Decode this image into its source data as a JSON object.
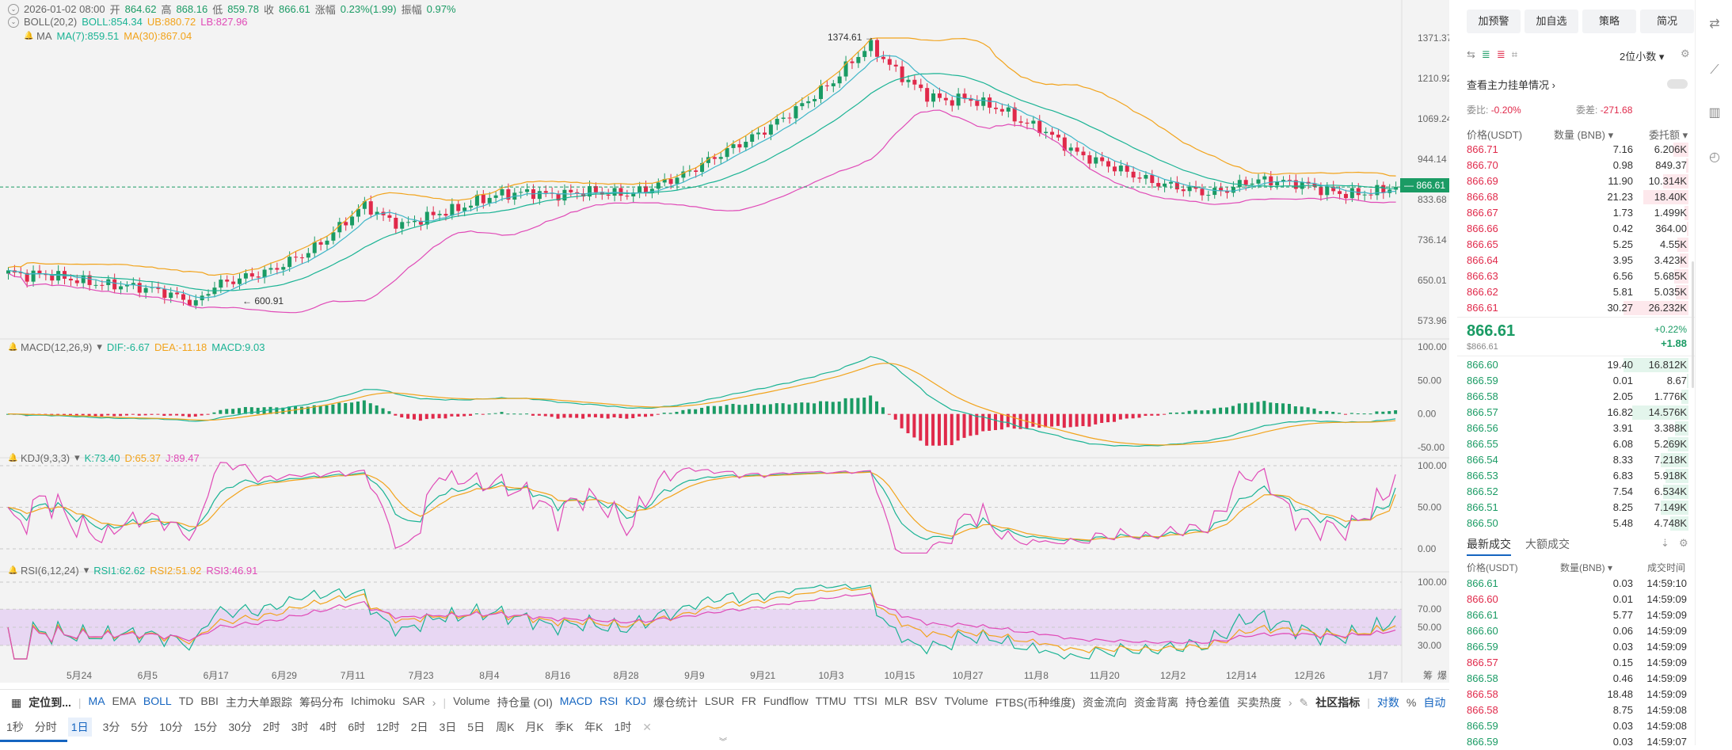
{
  "ohlc_line": {
    "date": "2026-01-02 08:00",
    "open_label": "开",
    "open": "864.62",
    "high_label": "高",
    "high": "868.16",
    "low_label": "低",
    "low": "859.78",
    "close_label": "收",
    "close": "866.61",
    "chg_label": "涨幅",
    "chg": "0.23%(1.99)",
    "amp_label": "振幅",
    "amp": "0.97%"
  },
  "boll_line": {
    "name": "BOLL(20,2)",
    "boll": "BOLL:854.34",
    "ub": "UB:880.72",
    "lb": "LB:827.96"
  },
  "ma_line": {
    "name": "MA",
    "ma7": "MA(7):859.51",
    "ma30": "MA(30):867.04"
  },
  "macd_line": {
    "name": "MACD(12,26,9)",
    "dif": "DIF:-6.67",
    "dea": "DEA:-11.18",
    "macd": "MACD:9.03"
  },
  "kdj_line": {
    "name": "KDJ(9,3,3)",
    "k": "K:73.40",
    "d": "D:65.37",
    "j": "J:89.47"
  },
  "rsi_line": {
    "name": "RSI(6,12,24)",
    "r1": "RSI1:62.62",
    "r2": "RSI2:51.92",
    "r3": "RSI3:46.91"
  },
  "price_axis": [
    "1371.37",
    "1210.92",
    "1069.24",
    "944.14",
    "833.68",
    "736.14",
    "650.01",
    "573.96"
  ],
  "current_price_tag": "866.61",
  "high_marker": "1374.61",
  "low_marker": "600.91",
  "macd_axis": [
    "100.00",
    "50.00",
    "0.00",
    "-50.00"
  ],
  "kdj_axis": [
    "100.00",
    "50.00",
    "0.00"
  ],
  "rsi_axis": [
    "100.00",
    "70.00",
    "50.00",
    "30.00"
  ],
  "date_axis": [
    "5月24",
    "6月5",
    "6月17",
    "6月29",
    "7月11",
    "7月23",
    "8月4",
    "8月16",
    "8月28",
    "9月9",
    "9月21",
    "10月3",
    "10月15",
    "10月27",
    "11月8",
    "11月20",
    "12月2",
    "12月14",
    "12月26",
    "1月7"
  ],
  "axis_corner": [
    "筹",
    "爆"
  ],
  "chart_data": {
    "type": "candlestick",
    "title": "",
    "timeframe": "1日",
    "high": 1374.61,
    "low": 600.91,
    "last": 866.61,
    "ylim": [
      573.96,
      1371.37
    ],
    "x_ticks": [
      "5月24",
      "6月5",
      "6月17",
      "6月29",
      "7月11",
      "7月23",
      "8月4",
      "8月16",
      "8月28",
      "9月9",
      "9月21",
      "10月3",
      "10月15",
      "10月27",
      "11月8",
      "11月20",
      "12月2",
      "12月14",
      "12月26",
      "1月7"
    ],
    "y_ticks": [
      1371.37,
      1210.92,
      1069.24,
      944.14,
      833.68,
      736.14,
      650.01,
      573.96
    ],
    "series": [
      {
        "name": "BOLL",
        "last": 854.34
      },
      {
        "name": "UB",
        "last": 880.72
      },
      {
        "name": "LB",
        "last": 827.96
      },
      {
        "name": "MA(7)",
        "last": 859.51
      },
      {
        "name": "MA(30)",
        "last": 867.04
      }
    ],
    "close_trend": [
      665,
      660,
      662,
      655,
      648,
      642,
      640,
      636,
      630,
      618,
      605,
      640,
      650,
      660,
      670,
      690,
      710,
      740,
      780,
      820,
      790,
      770,
      785,
      800,
      810,
      830,
      845,
      850,
      852,
      845,
      850,
      855,
      850,
      848,
      860,
      880,
      900,
      930,
      960,
      990,
      1020,
      1060,
      1100,
      1150,
      1200,
      1280,
      1340,
      1260,
      1200,
      1150,
      1130,
      1140,
      1120,
      1100,
      1060,
      1040,
      1000,
      960,
      940,
      920,
      900,
      880,
      870,
      860,
      850,
      860,
      880,
      885,
      880,
      875,
      860,
      850,
      848,
      855,
      866.61
    ],
    "indicators": {
      "macd": {
        "ylim": [
          -50,
          100
        ],
        "ticks": [
          100,
          50,
          0,
          -50
        ],
        "dif": -6.67,
        "dea": -11.18,
        "macd": 9.03
      },
      "kdj": {
        "ylim": [
          0,
          100
        ],
        "ticks": [
          100,
          50,
          0
        ],
        "k": 73.4,
        "d": 65.37,
        "j": 89.47
      },
      "rsi": {
        "ylim": [
          30,
          100
        ],
        "ticks": [
          100,
          70,
          50,
          30
        ],
        "band": [
          30,
          70
        ],
        "rsi1": 62.62,
        "rsi2": 51.92,
        "rsi3": 46.91
      }
    }
  },
  "indicator_bar": {
    "locate": "定位到...",
    "main": [
      "MA",
      "EMA",
      "BOLL",
      "TD",
      "BBI",
      "主力大单跟踪",
      "筹码分布",
      "Ichimoku",
      "SAR"
    ],
    "sub": [
      "Volume",
      "持仓量 (OI)",
      "MACD",
      "RSI",
      "KDJ",
      "爆仓统计",
      "LSUR",
      "FR",
      "Fundflow",
      "TTMU",
      "TTSI",
      "MLR",
      "BSV",
      "TVolume",
      "FTBS(币种维度)",
      "资金流向",
      "资金背离",
      "持仓差值",
      "买卖热度"
    ],
    "community": "社区指标",
    "log": "对数",
    "pct": "%",
    "auto": "自动"
  },
  "timeframes": [
    "1秒",
    "分时",
    "1日",
    "1日",
    "3分",
    "5分",
    "10分",
    "15分",
    "30分",
    "2时",
    "3时",
    "4时",
    "6时",
    "12时",
    "2日",
    "3日",
    "5日",
    "周K",
    "月K",
    "季K",
    "年K",
    "1时"
  ],
  "active_timeframe": "1日",
  "right_panel": {
    "buttons": [
      "加预警",
      "加自选",
      "策略",
      "简况"
    ],
    "decimals": "2位小数",
    "main_orders": "查看主力挂单情况",
    "weibi_label": "委比:",
    "weibi": "-0.20%",
    "weicha_label": "委差:",
    "weicha": "-271.68",
    "headers": {
      "price": "价格(USDT)",
      "qty": "数量 (BNB)",
      "total": "委托额"
    },
    "asks": [
      {
        "p": "866.71",
        "q": "7.16",
        "t": "6.206K"
      },
      {
        "p": "866.70",
        "q": "0.98",
        "t": "849.37"
      },
      {
        "p": "866.69",
        "q": "11.90",
        "t": "10.314K"
      },
      {
        "p": "866.68",
        "q": "21.23",
        "t": "18.40K"
      },
      {
        "p": "866.67",
        "q": "1.73",
        "t": "1.499K"
      },
      {
        "p": "866.66",
        "q": "0.42",
        "t": "364.00"
      },
      {
        "p": "866.65",
        "q": "5.25",
        "t": "4.55K"
      },
      {
        "p": "866.64",
        "q": "3.95",
        "t": "3.423K"
      },
      {
        "p": "866.63",
        "q": "6.56",
        "t": "5.685K"
      },
      {
        "p": "866.62",
        "q": "5.81",
        "t": "5.035K"
      },
      {
        "p": "866.61",
        "q": "30.27",
        "t": "26.232K"
      }
    ],
    "mid_price": "866.61",
    "mid_usd": "$866.61",
    "mid_pct": "+0.22%",
    "mid_chg": "+1.88",
    "bids": [
      {
        "p": "866.60",
        "q": "19.40",
        "t": "16.812K"
      },
      {
        "p": "866.59",
        "q": "0.01",
        "t": "8.67"
      },
      {
        "p": "866.58",
        "q": "2.05",
        "t": "1.776K"
      },
      {
        "p": "866.57",
        "q": "16.82",
        "t": "14.576K"
      },
      {
        "p": "866.56",
        "q": "3.91",
        "t": "3.388K"
      },
      {
        "p": "866.55",
        "q": "6.08",
        "t": "5.269K"
      },
      {
        "p": "866.54",
        "q": "8.33",
        "t": "7.218K"
      },
      {
        "p": "866.53",
        "q": "6.83",
        "t": "5.918K"
      },
      {
        "p": "866.52",
        "q": "7.54",
        "t": "6.534K"
      },
      {
        "p": "866.51",
        "q": "8.25",
        "t": "7.149K"
      },
      {
        "p": "866.50",
        "q": "5.48",
        "t": "4.748K"
      }
    ],
    "trades_tabs": [
      "最新成交",
      "大额成交"
    ],
    "trades_headers": {
      "price": "价格(USDT)",
      "qty": "数量(BNB)",
      "time": "成交时间"
    },
    "trades": [
      {
        "p": "866.61",
        "q": "0.03",
        "t": "14:59:10",
        "side": "buy"
      },
      {
        "p": "866.60",
        "q": "0.01",
        "t": "14:59:09",
        "side": "sell"
      },
      {
        "p": "866.61",
        "q": "5.77",
        "t": "14:59:09",
        "side": "buy"
      },
      {
        "p": "866.60",
        "q": "0.06",
        "t": "14:59:09",
        "side": "buy"
      },
      {
        "p": "866.59",
        "q": "0.03",
        "t": "14:59:09",
        "side": "buy"
      },
      {
        "p": "866.57",
        "q": "0.15",
        "t": "14:59:09",
        "side": "sell"
      },
      {
        "p": "866.58",
        "q": "0.46",
        "t": "14:59:09",
        "side": "buy"
      },
      {
        "p": "866.58",
        "q": "18.48",
        "t": "14:59:09",
        "side": "sell"
      },
      {
        "p": "866.58",
        "q": "8.75",
        "t": "14:59:08",
        "side": "sell"
      },
      {
        "p": "866.59",
        "q": "0.03",
        "t": "14:59:08",
        "side": "buy"
      },
      {
        "p": "866.59",
        "q": "0.03",
        "t": "14:59:07",
        "side": "buy"
      }
    ]
  },
  "colors": {
    "up": "#1a9b64",
    "down": "#e0294a",
    "boll": "#1ab394",
    "ub": "#f2a31b",
    "lb": "#e04ab7",
    "accent": "#1565c0"
  }
}
